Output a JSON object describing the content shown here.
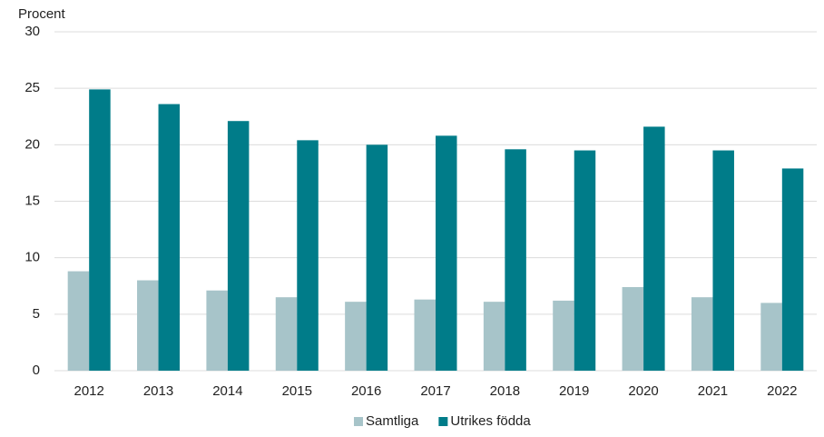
{
  "chart_data": {
    "type": "bar",
    "y_label": "Procent",
    "categories": [
      "2012",
      "2013",
      "2014",
      "2015",
      "2016",
      "2017",
      "2018",
      "2019",
      "2020",
      "2021",
      "2022"
    ],
    "series": [
      {
        "name": "Samtliga",
        "color": "#a7c4c9",
        "values": [
          8.8,
          8.0,
          7.1,
          6.5,
          6.1,
          6.3,
          6.1,
          6.2,
          7.4,
          6.5,
          6.0
        ]
      },
      {
        "name": "Utrikes födda",
        "color": "#007c89",
        "values": [
          24.9,
          23.6,
          22.1,
          20.4,
          20.0,
          20.8,
          19.6,
          19.5,
          21.6,
          19.5,
          17.9
        ]
      }
    ],
    "ylim": [
      0,
      30
    ],
    "yticks": [
      0,
      5,
      10,
      15,
      20,
      25,
      30
    ],
    "grid": true,
    "legend": "bottom"
  }
}
